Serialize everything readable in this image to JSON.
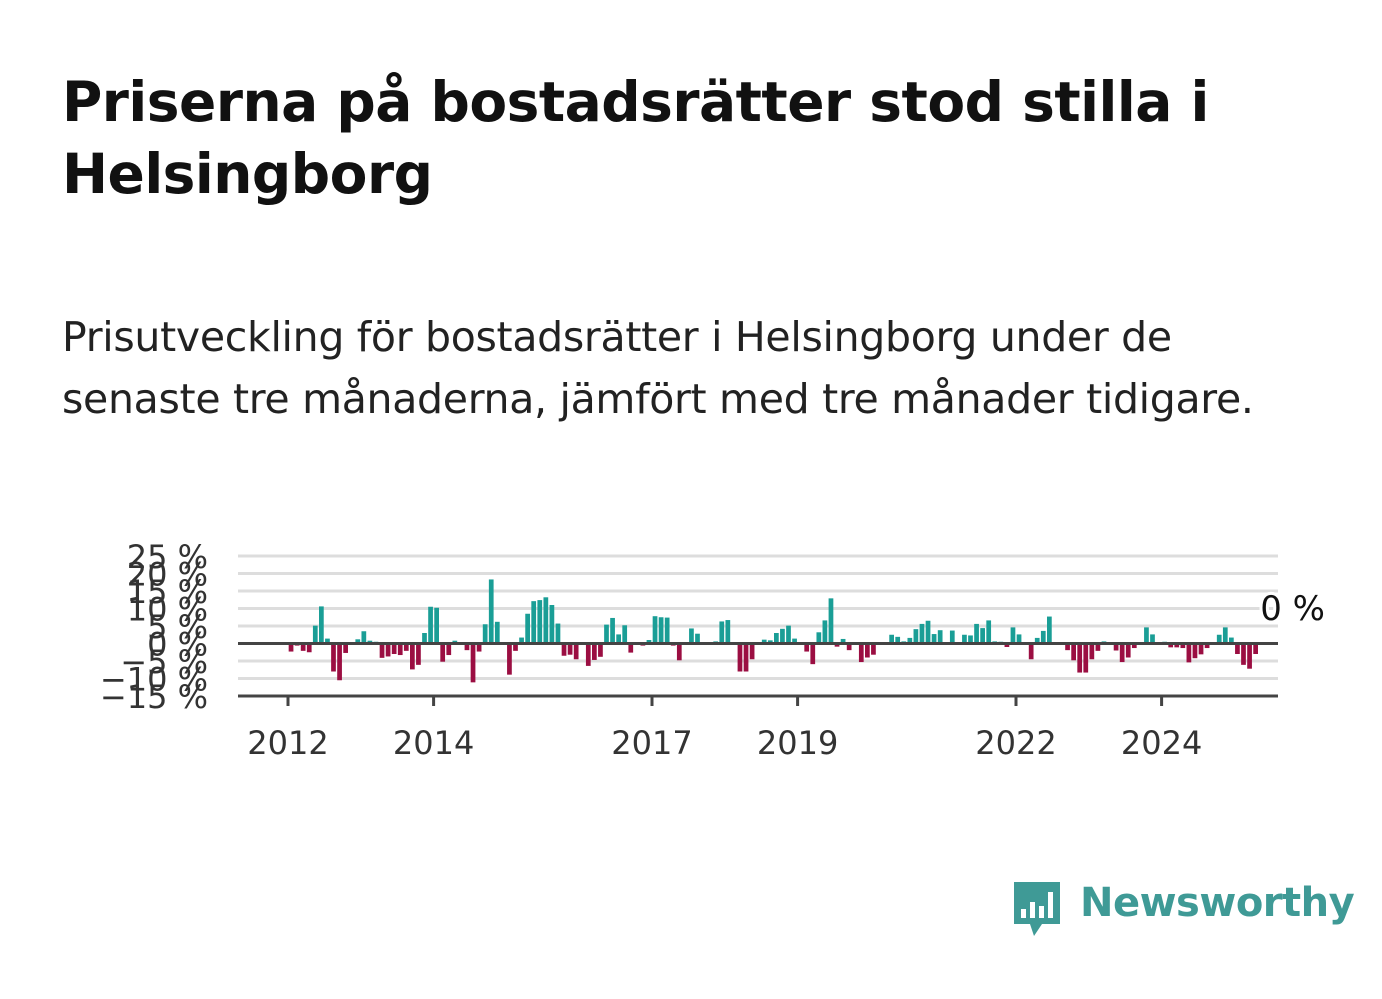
{
  "header": {
    "title": "Priserna på bostadsrätter stod stilla i Helsingborg",
    "subtitle": "Prisutveckling för bostadsrätter i Helsingborg under de senaste tre månaderna, jämfört med tre månader tidigare."
  },
  "brand": {
    "name": "Newsworthy",
    "color": "#3f9a96",
    "icon": "bar-chart-speech-bubble-icon"
  },
  "chart_data": {
    "type": "bar",
    "ylim": [
      -15,
      25
    ],
    "y_ticks": [
      -15,
      -10,
      -5,
      0,
      5,
      10,
      15,
      20,
      25
    ],
    "y_tick_labels": [
      "−15 %",
      "−10 %",
      "−5 %",
      "0 %",
      "5 %",
      "10 %",
      "15 %",
      "20 %",
      "25 %"
    ],
    "x_ticks": [
      2012,
      2014,
      2017,
      2019,
      2022,
      2024
    ],
    "x_tick_labels": [
      "2012",
      "2014",
      "2017",
      "2019",
      "2022",
      "2024"
    ],
    "grid": true,
    "colors": {
      "positive": "#1a9e96",
      "negative": "#9b0e42",
      "grid": "#dddddd",
      "axis": "#444444"
    },
    "annotation": {
      "text": "0 %",
      "value": 0
    },
    "series": [
      {
        "start_year": 2012,
        "start_month": 1,
        "values": [
          -2.3,
          -0.6,
          -2.1,
          -2.5,
          5.1,
          10.6,
          1.4,
          -8.0,
          -10.5,
          -2.7,
          0,
          1.2,
          3.5,
          0.8,
          0.5,
          -4.1,
          -3.7,
          -3.0,
          -3.3,
          -2.1,
          -7.4,
          -6.1,
          3.0,
          10.5,
          10.2,
          -5.2,
          -3.3,
          0.8,
          0,
          -1.9,
          -11.1,
          -2.3,
          5.5,
          18.3,
          6.2,
          -0.3,
          -8.9,
          -2.1,
          1.7,
          8.5,
          12.1,
          12.4,
          13.2,
          11.0,
          5.7,
          -3.5,
          -3.2,
          -4.5,
          0,
          -6.4,
          -4.7,
          -3.8,
          5.4,
          7.3,
          2.6,
          5.2,
          -2.6,
          0,
          -0.6,
          1.0,
          7.8,
          7.5,
          7.4,
          -0.6,
          -4.8,
          0.1,
          4.3,
          2.8,
          0,
          0,
          0.6,
          6.3,
          6.7,
          0,
          -8.0,
          -8.0,
          -4.5,
          0.4,
          1.1,
          0.9,
          3.0,
          4.2,
          5.1,
          1.4,
          0,
          -2.3,
          -5.9,
          3.2,
          6.6,
          12.9,
          -0.9,
          1.3,
          -1.9,
          0,
          -5.3,
          -4.0,
          -3.2,
          0,
          0.3,
          2.5,
          1.9,
          0.6,
          1.6,
          4.1,
          5.6,
          6.5,
          2.7,
          3.8,
          0,
          3.7,
          0,
          2.5,
          2.3,
          5.6,
          4.4,
          6.6,
          0.6,
          0.5,
          -1.0,
          4.6,
          2.6,
          0,
          -4.5,
          1.6,
          3.6,
          7.7,
          0,
          0.3,
          -1.9,
          -4.8,
          -8.3,
          -8.3,
          -4.5,
          -2.1,
          0.6,
          0.3,
          -2.0,
          -5.3,
          -4.0,
          -1.3,
          0,
          4.6,
          2.6,
          0,
          0.5,
          -1.1,
          -1.1,
          -1.3,
          -5.4,
          -4.2,
          -3.1,
          -1.3,
          0.2,
          2.5,
          4.6,
          1.7,
          -3.0,
          -6.1,
          -7.2,
          -3.0
        ]
      }
    ]
  }
}
